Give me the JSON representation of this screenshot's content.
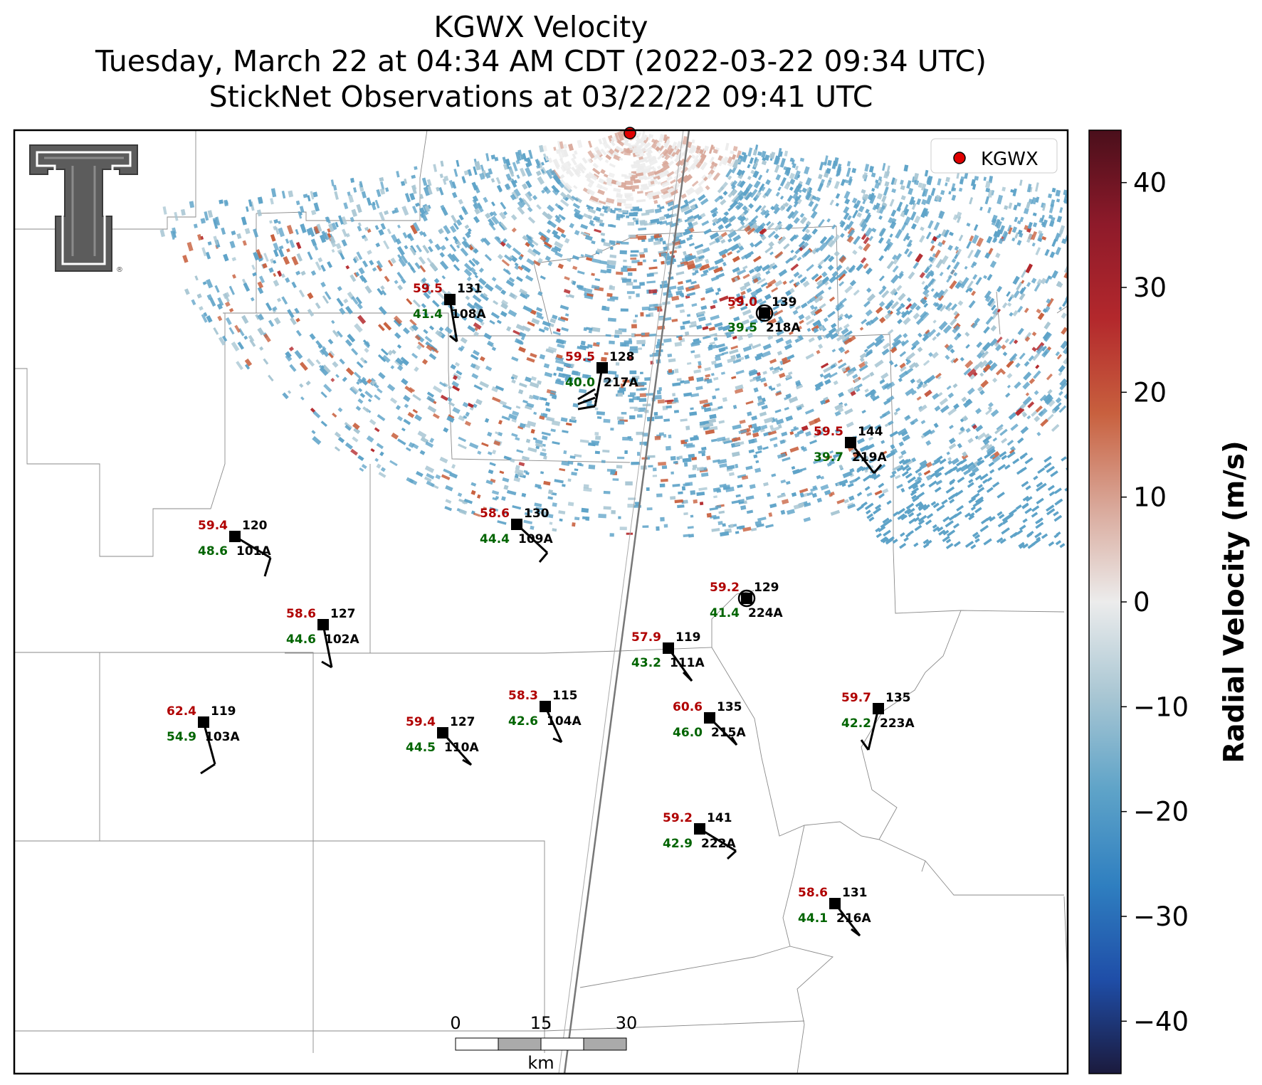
{
  "title": {
    "line1": "KGWX Velocity",
    "line2": "Tuesday, March 22 at 04:34 AM CDT (2022-03-22 09:34 UTC)",
    "line3": "StickNet Observations at 03/22/22 09:41 UTC"
  },
  "legend": {
    "label": "KGWX",
    "marker_color": "#e00000"
  },
  "colorbar": {
    "label": "Radial Velocity (m/s)",
    "range": [
      -45,
      45
    ],
    "ticks": [
      "40",
      "30",
      "20",
      "10",
      "0",
      "−10",
      "−20",
      "−30",
      "−40"
    ],
    "colors": [
      "#1b1a3d",
      "#1f4ea8",
      "#2f7fc0",
      "#5ea3c8",
      "#a8c6d3",
      "#ececec",
      "#d9a89a",
      "#c8603e",
      "#b3282c",
      "#8e1a2a",
      "#4a0f1b"
    ]
  },
  "scale_bar": {
    "ticks": [
      "0",
      "15",
      "30"
    ],
    "unit": "km"
  },
  "logo": {
    "name": "Texas Tech Double T",
    "mark": "®"
  },
  "stations": [
    {
      "id": "108A",
      "temp": "59.5",
      "dew": "41.4",
      "pres": "131"
    },
    {
      "id": "218A",
      "temp": "59.0",
      "dew": "39.5",
      "pres": "139"
    },
    {
      "id": "217A",
      "temp": "59.5",
      "dew": "40.0",
      "pres": "128"
    },
    {
      "id": "219A",
      "temp": "59.5",
      "dew": "39.7",
      "pres": "144"
    },
    {
      "id": "101A",
      "temp": "59.4",
      "dew": "48.6",
      "pres": "120"
    },
    {
      "id": "109A",
      "temp": "58.6",
      "dew": "44.4",
      "pres": "130"
    },
    {
      "id": "224A",
      "temp": "59.2",
      "dew": "41.4",
      "pres": "129"
    },
    {
      "id": "102A",
      "temp": "58.6",
      "dew": "44.6",
      "pres": "127"
    },
    {
      "id": "111A",
      "temp": "57.9",
      "dew": "43.2",
      "pres": "119"
    },
    {
      "id": "103A",
      "temp": "62.4",
      "dew": "54.9",
      "pres": "119"
    },
    {
      "id": "104A",
      "temp": "58.3",
      "dew": "42.6",
      "pres": "115"
    },
    {
      "id": "110A",
      "temp": "59.4",
      "dew": "44.5",
      "pres": "127"
    },
    {
      "id": "215A",
      "temp": "60.6",
      "dew": "46.0",
      "pres": "135"
    },
    {
      "id": "223A",
      "temp": "59.7",
      "dew": "42.2",
      "pres": "135"
    },
    {
      "id": "222A",
      "temp": "59.2",
      "dew": "42.9",
      "pres": "141"
    },
    {
      "id": "216A",
      "temp": "58.6",
      "dew": "44.1",
      "pres": "131"
    }
  ],
  "colors": {
    "temp": "#b00000",
    "dew": "#006400",
    "label": "#000000"
  }
}
